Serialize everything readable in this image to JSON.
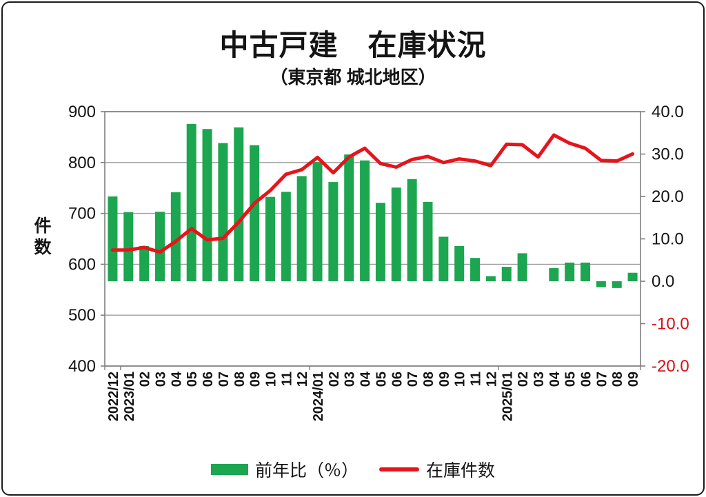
{
  "title": "中古戸建　在庫状況",
  "subtitle": "（東京都 城北地区）",
  "left_axis_title": "件数",
  "legend": {
    "bar_label": "前年比（％）",
    "line_label": "在庫件数"
  },
  "colors": {
    "bar": "#1BA64F",
    "line": "#E6141B",
    "grid": "#9e9e9e",
    "axis": "#7f7f7f",
    "text": "#141414",
    "negative_label": "#d80f16",
    "background": "#ffffff"
  },
  "chart_data": {
    "type": "combo",
    "categories": [
      "2022/12",
      "2023/01",
      "02",
      "03",
      "04",
      "05",
      "06",
      "07",
      "08",
      "09",
      "10",
      "11",
      "12",
      "2024/01",
      "02",
      "03",
      "04",
      "05",
      "06",
      "07",
      "08",
      "09",
      "10",
      "11",
      "12",
      "2025/01",
      "02",
      "03",
      "04",
      "05",
      "06",
      "07",
      "08",
      "09"
    ],
    "series": [
      {
        "name": "前年比（％）",
        "type": "bar",
        "axis": "right",
        "values": [
          20.0,
          16.3,
          8.3,
          16.4,
          21.0,
          37.1,
          35.9,
          32.6,
          36.3,
          32.1,
          19.9,
          21.1,
          24.8,
          28.1,
          23.4,
          29.9,
          28.5,
          18.5,
          22.1,
          24.1,
          18.7,
          10.5,
          8.3,
          5.5,
          1.2,
          3.4,
          6.6,
          0.0,
          3.1,
          4.4,
          4.4,
          -1.4,
          -1.6,
          2.0
        ]
      },
      {
        "name": "在庫件数",
        "type": "line",
        "axis": "left",
        "values": [
          628,
          628,
          633,
          624,
          645,
          670,
          648,
          651,
          683,
          720,
          745,
          777,
          786,
          810,
          780,
          811,
          828,
          798,
          791,
          806,
          812,
          800,
          807,
          803,
          794,
          836,
          835,
          811,
          854,
          838,
          828,
          804,
          803,
          817
        ]
      }
    ],
    "left_axis": {
      "min": 400,
      "max": 900,
      "step": 100,
      "ticks": [
        {
          "value": 900,
          "label": "900"
        },
        {
          "value": 800,
          "label": "800"
        },
        {
          "value": 700,
          "label": "700"
        },
        {
          "value": 600,
          "label": "600"
        },
        {
          "value": 500,
          "label": "500"
        },
        {
          "value": 400,
          "label": "400"
        }
      ]
    },
    "right_axis": {
      "min": -20,
      "max": 40,
      "step": 10,
      "ticks": [
        {
          "value": 40,
          "label": "40.0"
        },
        {
          "value": 30,
          "label": "30.0"
        },
        {
          "value": 20,
          "label": "20.0"
        },
        {
          "value": 10,
          "label": "10.0"
        },
        {
          "value": 0,
          "label": "0.0"
        },
        {
          "value": -10,
          "label": "-10.0"
        },
        {
          "value": -20,
          "label": "-20.0"
        }
      ]
    },
    "grid": true,
    "legend_position": "bottom"
  }
}
